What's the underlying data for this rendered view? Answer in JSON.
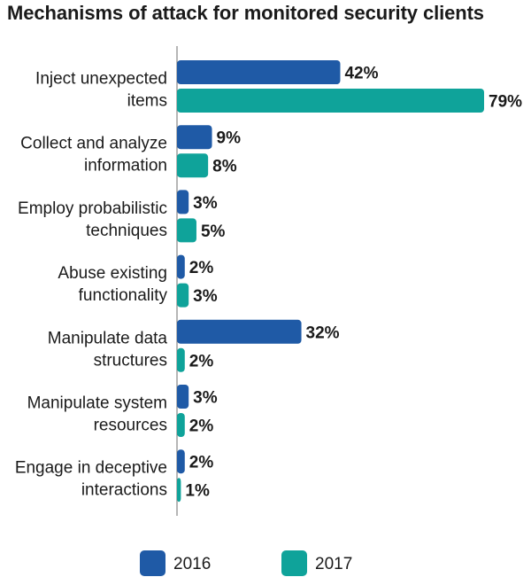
{
  "chart_data": {
    "type": "bar",
    "orientation": "horizontal",
    "title": "Mechanisms of attack for monitored security clients",
    "categories": [
      [
        "Inject unexpected",
        "items"
      ],
      [
        "Collect and analyze",
        "information"
      ],
      [
        "Employ probabilistic",
        "techniques"
      ],
      [
        "Abuse existing",
        "functionality"
      ],
      [
        "Manipulate data",
        "structures"
      ],
      [
        "Manipulate system",
        "resources"
      ],
      [
        "Engage in deceptive",
        "interactions"
      ]
    ],
    "series": [
      {
        "name": "2016",
        "color": "#1f5aa6",
        "values": [
          42,
          9,
          3,
          2,
          32,
          3,
          2
        ],
        "labels": [
          "42%",
          "9%",
          "3%",
          "2%",
          "32%",
          "3%",
          "2%"
        ]
      },
      {
        "name": "2017",
        "color": "#0fa39a",
        "values": [
          79,
          8,
          5,
          3,
          2,
          2,
          1
        ],
        "labels": [
          "79%",
          "8%",
          "5%",
          "3%",
          "2%",
          "2%",
          "1%"
        ]
      }
    ],
    "unit": "%",
    "xlim": [
      0,
      79
    ],
    "grid": false,
    "legend_position": "bottom"
  }
}
